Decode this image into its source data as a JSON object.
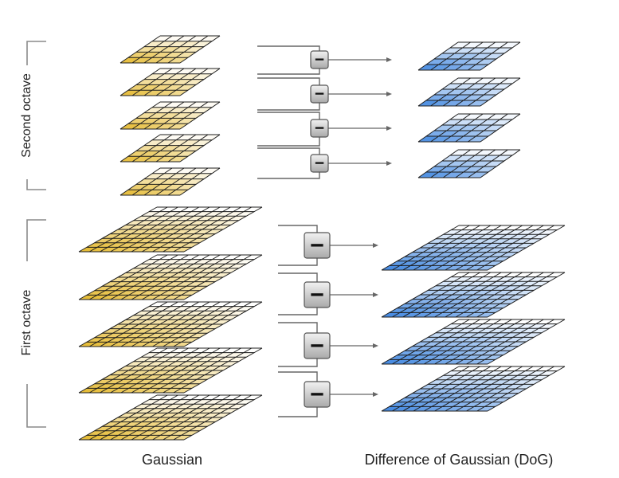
{
  "labels": {
    "gaussian": "Gaussian",
    "dog": "Difference of Gaussian (DoG)",
    "second_octave": "Second octave",
    "first_octave": "First octave"
  },
  "operator_symbol": "−",
  "octaves": [
    {
      "name_key": "second_octave",
      "gaussian_layers": 5,
      "dog_layers": 4,
      "grid_size": 5,
      "subtract_operators": 4
    },
    {
      "name_key": "first_octave",
      "gaussian_layers": 5,
      "dog_layers": 4,
      "grid_size": 10,
      "subtract_operators": 4
    }
  ],
  "colors": {
    "gaussian_dark": "#e5b92e",
    "gaussian_light": "#ffffff",
    "dog_dark": "#3f86e0",
    "dog_light": "#ffffff",
    "operator_box_top": "#f2f2f2",
    "operator_box_bottom": "#a9a9a9",
    "bracket": "#8a8a8a",
    "connector": "#666666"
  }
}
